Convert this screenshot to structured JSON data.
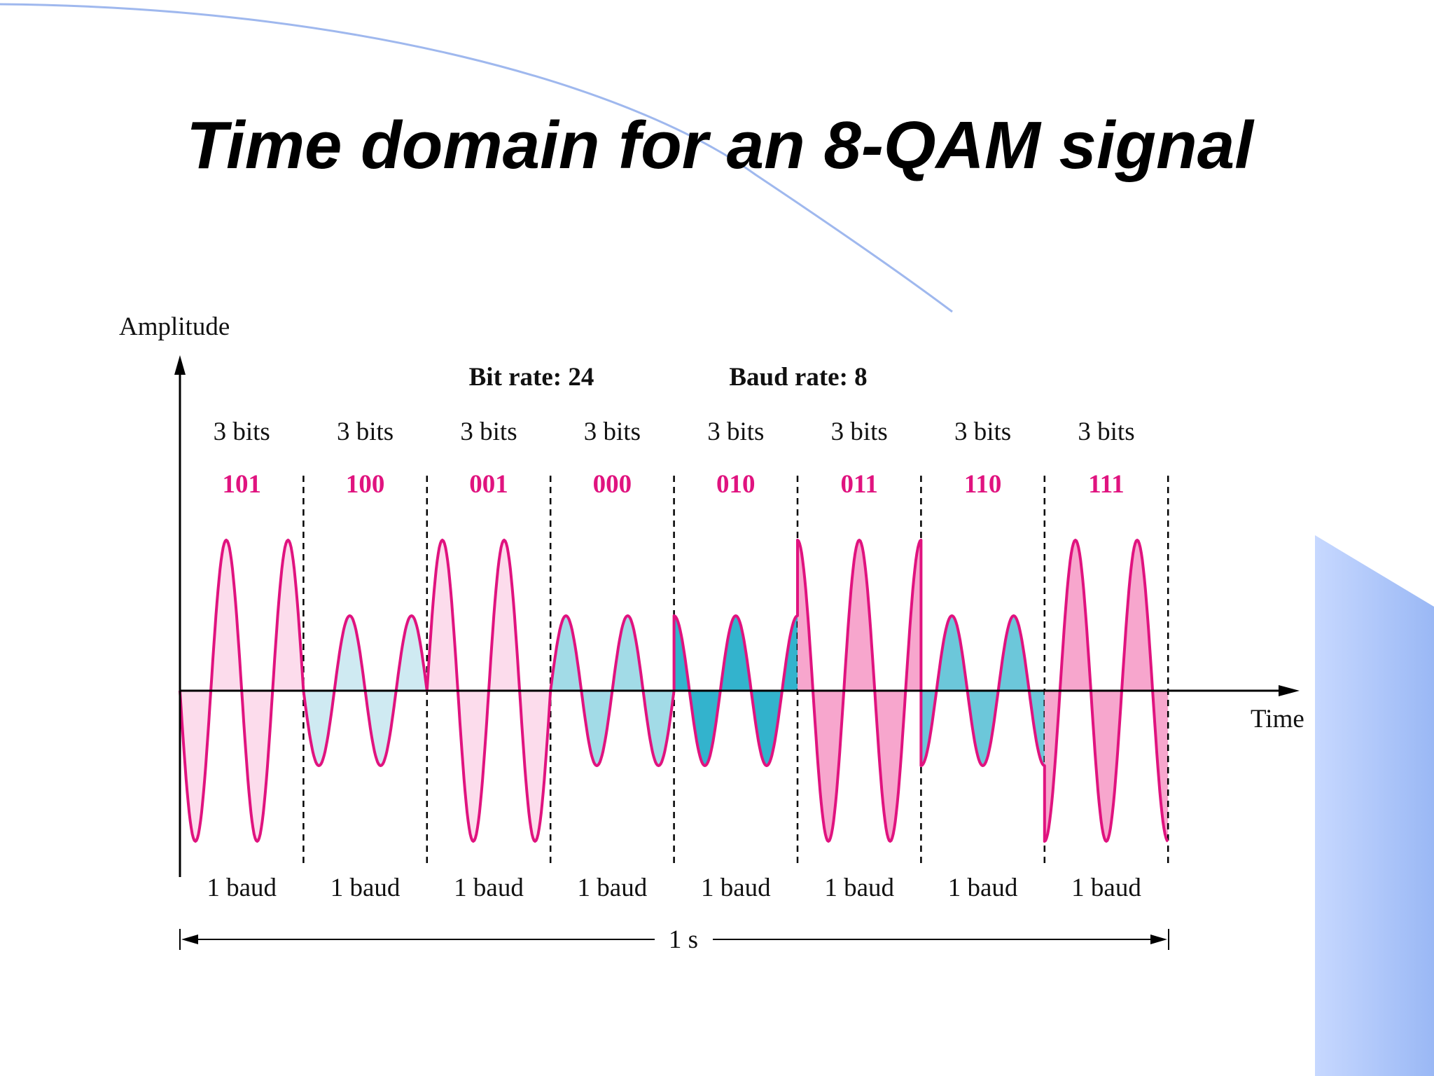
{
  "title": "Time domain for an 8-QAM signal",
  "y_axis_label": "Amplitude",
  "x_axis_label": "Time",
  "bit_rate": "Bit rate: 24",
  "baud_rate": "Baud rate: 8",
  "segments": [
    {
      "bits": "3 bits",
      "code": "101",
      "baud": "1 baud"
    },
    {
      "bits": "3 bits",
      "code": "100",
      "baud": "1 baud"
    },
    {
      "bits": "3 bits",
      "code": "001",
      "baud": "1 baud"
    },
    {
      "bits": "3 bits",
      "code": "000",
      "baud": "1 baud"
    },
    {
      "bits": "3 bits",
      "code": "010",
      "baud": "1 baud"
    },
    {
      "bits": "3 bits",
      "code": "011",
      "baud": "1 baud"
    },
    {
      "bits": "3 bits",
      "code": "110",
      "baud": "1 baud"
    },
    {
      "bits": "3 bits",
      "code": "111",
      "baud": "1 baud"
    }
  ],
  "duration": "1 s"
}
